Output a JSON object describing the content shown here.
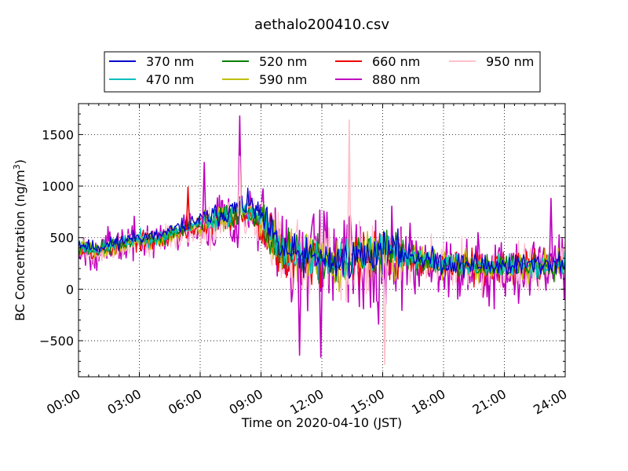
{
  "chart_data": {
    "type": "line",
    "title": "aethalo200410.csv",
    "xlabel": "Time on 2020-04-10 (JST)",
    "ylabel": {
      "prefix": "BC Concentration (ng/m",
      "sup": "3",
      "suffix": ")"
    },
    "x_unit": "hours since 00:00 JST",
    "xlim": [
      0,
      24
    ],
    "ylim": [
      -850,
      1800
    ],
    "x_ticks": [
      0,
      3,
      6,
      9,
      12,
      15,
      18,
      21,
      24
    ],
    "x_tick_labels": [
      "00:00",
      "03:00",
      "06:00",
      "09:00",
      "12:00",
      "15:00",
      "18:00",
      "21:00",
      "24:00"
    ],
    "y_ticks": [
      -500,
      0,
      500,
      1000,
      1500
    ],
    "y_tick_labels": [
      "−500",
      "0",
      "500",
      "1000",
      "1500"
    ],
    "grid": true,
    "legend_position": "top, above plot (4 columns)",
    "base": {
      "x": [
        0.0,
        0.5,
        1.0,
        1.5,
        2.0,
        2.5,
        3.0,
        3.5,
        4.0,
        4.5,
        5.0,
        5.5,
        6.0,
        6.5,
        7.0,
        7.5,
        8.0,
        8.5,
        9.0,
        9.5,
        10.0,
        10.5,
        11.0,
        11.5,
        12.0,
        12.5,
        13.0,
        13.5,
        14.0,
        14.5,
        15.0,
        15.5,
        16.0,
        16.5,
        17.0,
        17.5,
        18.0,
        18.5,
        19.0,
        19.5,
        20.0,
        20.5,
        21.0,
        21.5,
        22.0,
        22.5,
        23.0,
        23.5,
        24.0
      ],
      "y": [
        420,
        380,
        380,
        400,
        430,
        450,
        480,
        470,
        480,
        520,
        560,
        600,
        620,
        650,
        680,
        700,
        750,
        760,
        650,
        500,
        350,
        320,
        290,
        280,
        270,
        250,
        260,
        280,
        300,
        320,
        350,
        340,
        320,
        300,
        280,
        260,
        240,
        230,
        220,
        220,
        220,
        210,
        210,
        220,
        220,
        220,
        230,
        240,
        240
      ]
    },
    "series": [
      {
        "name": "370 nm",
        "color": "#0000cc",
        "amp": 0.38,
        "scale": 1.08,
        "seed": 11
      },
      {
        "name": "470 nm",
        "color": "#00bfbf",
        "amp": 0.38,
        "scale": 1.04,
        "seed": 23
      },
      {
        "name": "520 nm",
        "color": "#007f00",
        "amp": 0.42,
        "scale": 1.02,
        "seed": 37
      },
      {
        "name": "590 nm",
        "color": "#bfbf00",
        "amp": 0.45,
        "scale": 1.0,
        "seed": 41
      },
      {
        "name": "660 nm",
        "color": "#ee0000",
        "amp": 0.48,
        "scale": 0.98,
        "seed": 53
      },
      {
        "name": "880 nm",
        "color": "#bf00bf",
        "amp": 1.0,
        "scale": 1.0,
        "seed": 67
      },
      {
        "name": "950 nm",
        "color": "#ffc0cb",
        "amp": 0.75,
        "scale": 0.96,
        "seed": 79
      }
    ],
    "spikes": [
      {
        "series": "880 nm",
        "x": 7.95,
        "y": 1680
      },
      {
        "series": "880 nm",
        "x": 10.9,
        "y": -640
      },
      {
        "series": "880 nm",
        "x": 11.95,
        "y": -660
      },
      {
        "series": "880 nm",
        "x": 6.2,
        "y": 1230
      },
      {
        "series": "950 nm",
        "x": 13.35,
        "y": 1640
      },
      {
        "series": "950 nm",
        "x": 15.1,
        "y": -730
      },
      {
        "series": "950 nm",
        "x": 7.95,
        "y": 1290
      },
      {
        "series": "660 nm",
        "x": 5.4,
        "y": 990
      },
      {
        "series": "880 nm",
        "x": 23.3,
        "y": 880
      }
    ]
  }
}
